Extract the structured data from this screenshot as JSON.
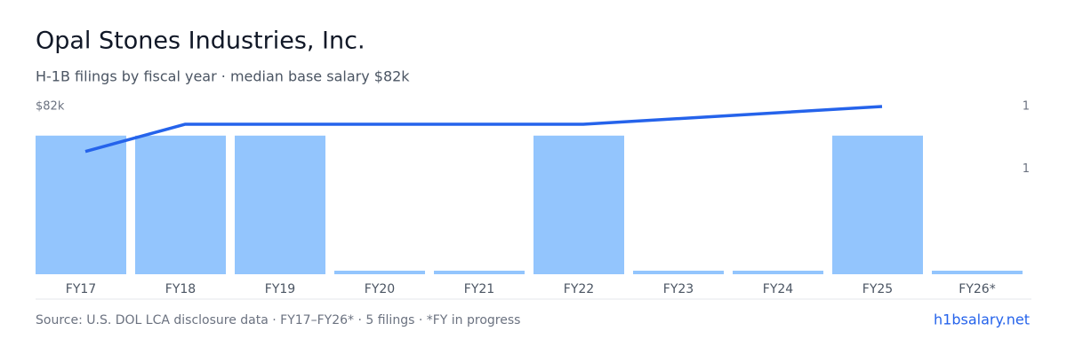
{
  "chart_data": {
    "type": "bar",
    "title": "Opal Stones Industries, Inc.",
    "subtitle": "H-1B filings by fiscal year · median base salary $82k",
    "categories": [
      "FY17",
      "FY18",
      "FY19",
      "FY20",
      "FY21",
      "FY22",
      "FY23",
      "FY24",
      "FY25",
      "FY26*"
    ],
    "bars": {
      "color": "#93c5fd",
      "values": [
        1,
        1,
        1,
        0,
        0,
        1,
        0,
        0,
        1,
        0
      ]
    },
    "y2lim": [
      0,
      1.21
    ],
    "y2ticks": [
      {
        "value": 1.21,
        "label": "1"
      },
      {
        "value": 0.76,
        "label": "1"
      }
    ],
    "line": {
      "color": "#2563eb",
      "x": [
        "FY17",
        "FY18",
        "FY19",
        "FY22",
        "FY25"
      ],
      "values": [
        60000,
        73300,
        73300,
        73300,
        82000
      ]
    },
    "ylim": [
      0,
      82000
    ],
    "yticks": [
      {
        "value": 82000,
        "label": "$82k"
      }
    ],
    "footer": {
      "source": "Source: U.S. DOL LCA disclosure data · FY17–FY26* · 5 filings · *FY in progress",
      "link": "h1bsalary.net"
    }
  }
}
